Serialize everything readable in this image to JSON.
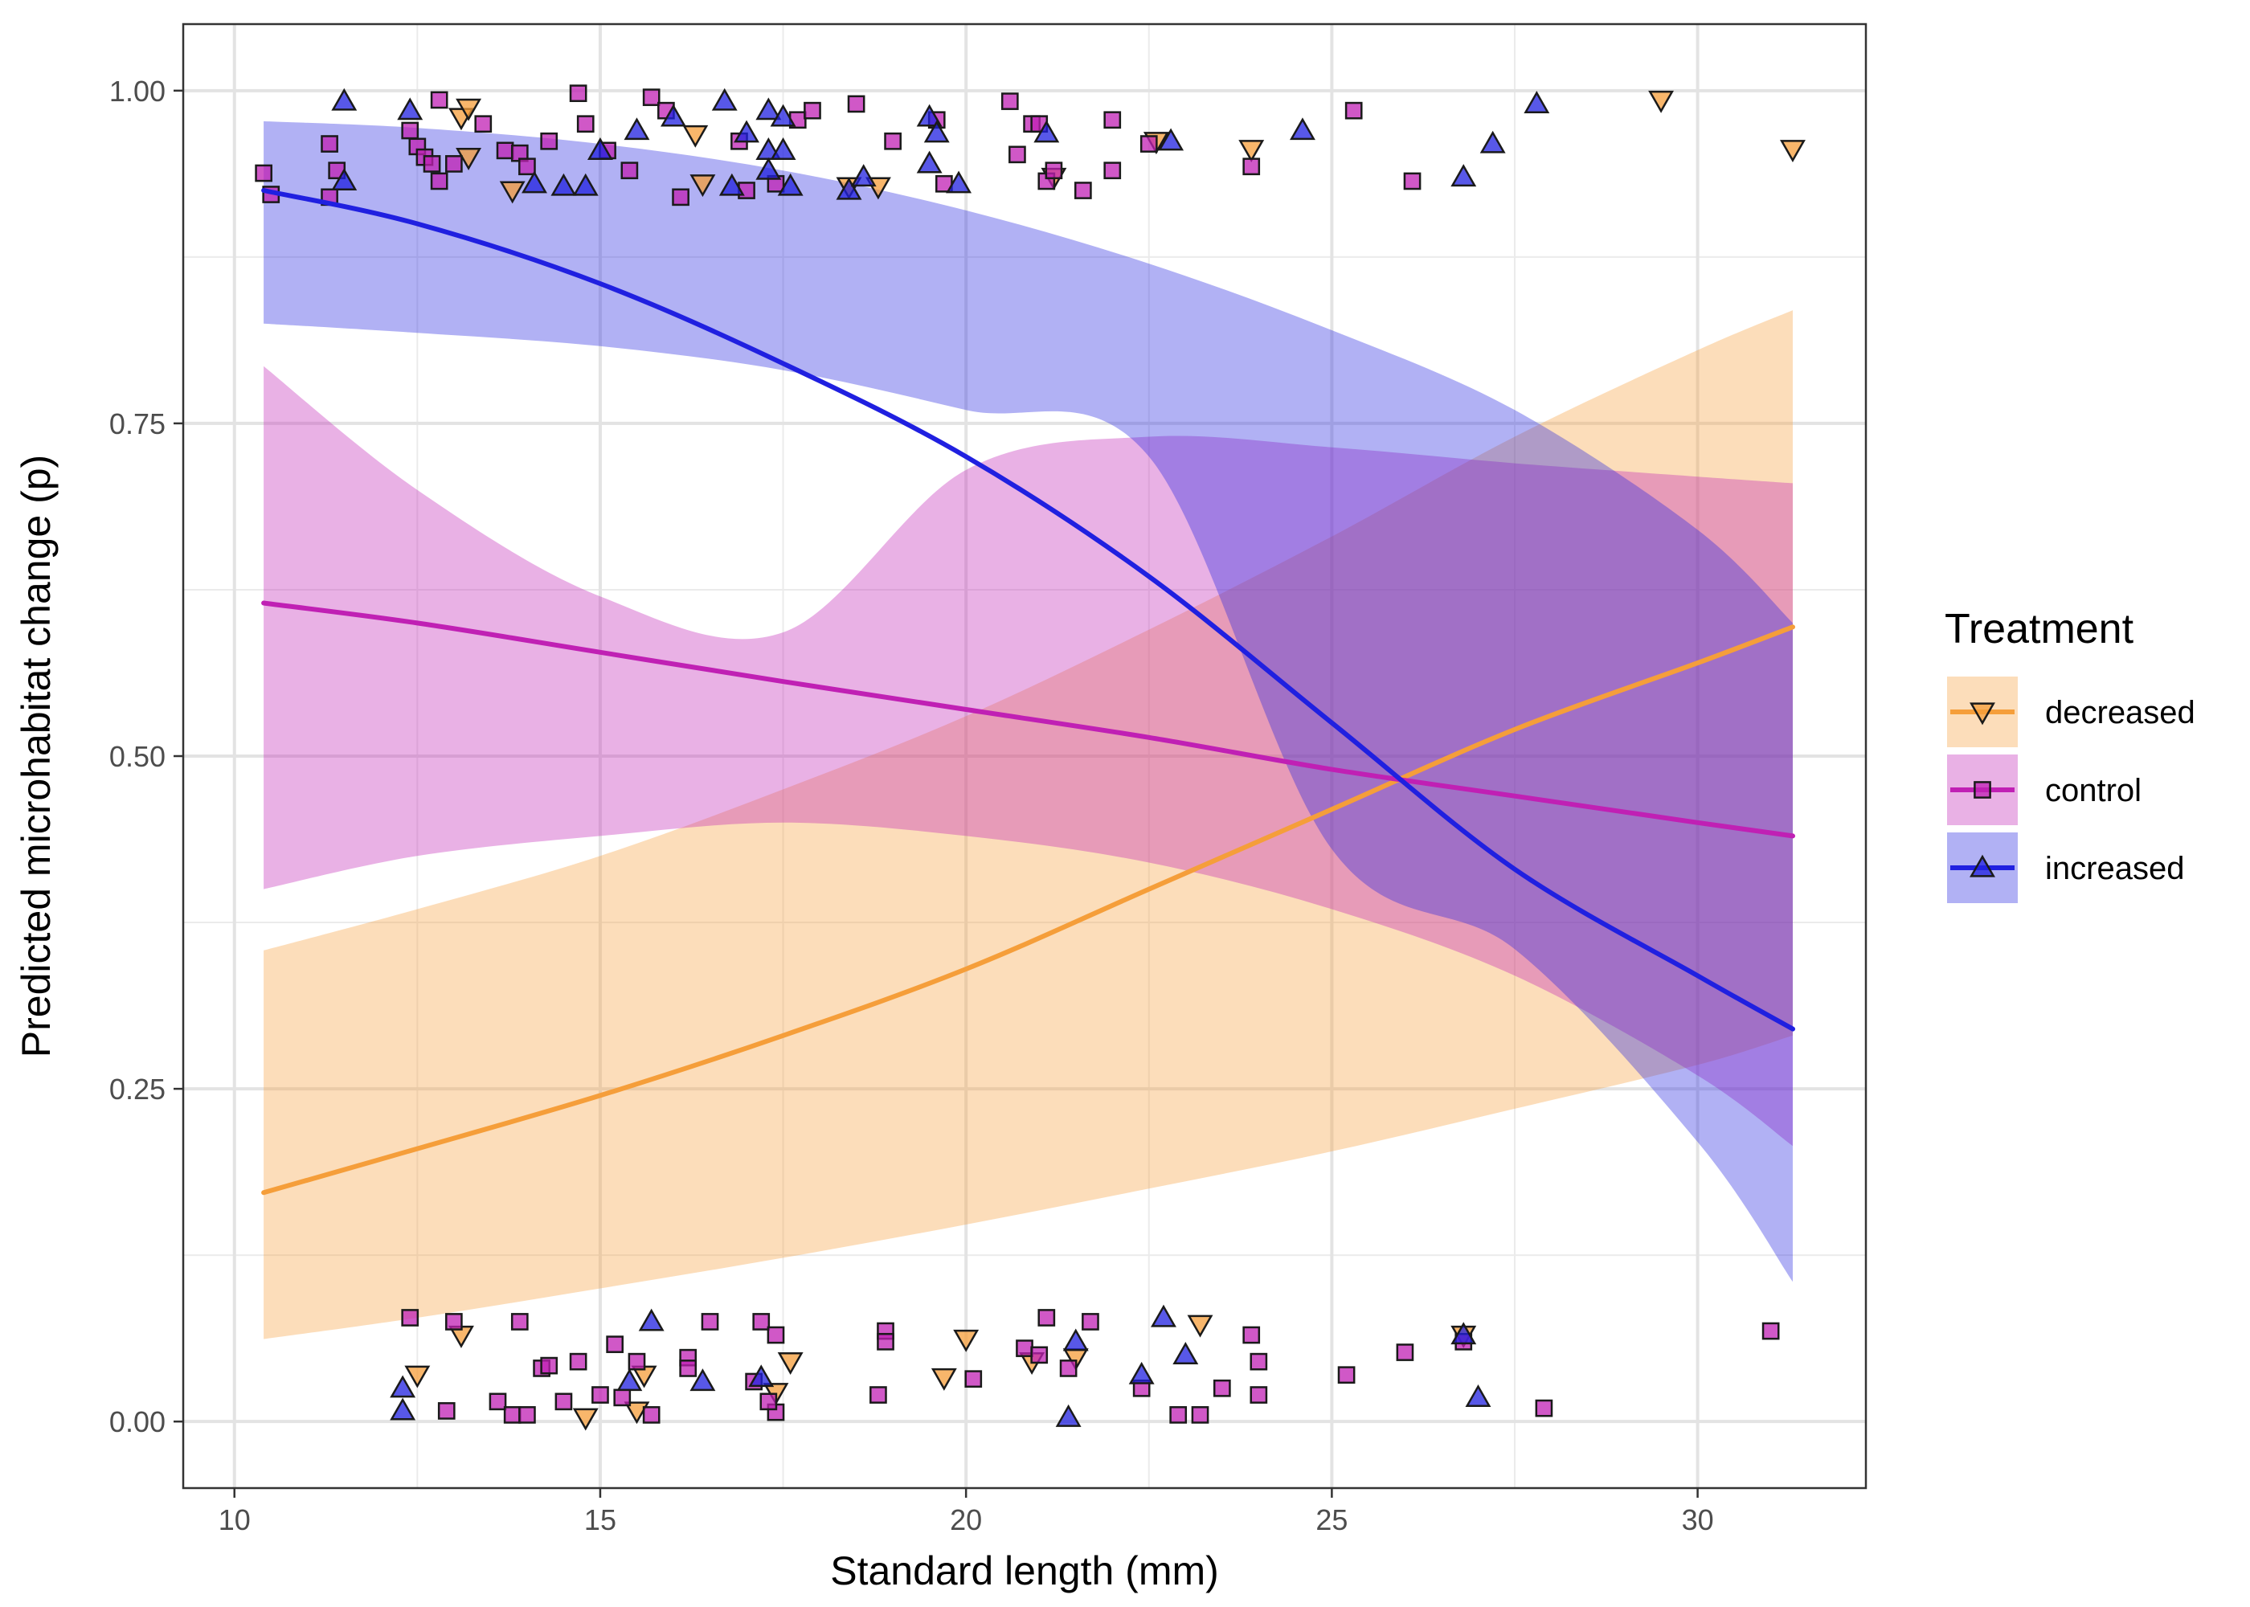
{
  "chart_data": {
    "type": "line",
    "xlabel": "Standard length (mm)",
    "ylabel": "Predicted microhabitat change (p)",
    "xlim": [
      9.3,
      32.3
    ],
    "ylim": [
      -0.05,
      1.05
    ],
    "x_ticks": [
      10,
      15,
      20,
      25,
      30
    ],
    "x_tick_labels": [
      "10",
      "15",
      "20",
      "25",
      "30"
    ],
    "y_ticks": [
      0,
      0.25,
      0.5,
      0.75,
      1
    ],
    "y_tick_labels": [
      "0.00",
      "0.25",
      "0.50",
      "0.75",
      "1.00"
    ],
    "grid": true,
    "legend": {
      "title": "Treatment",
      "position": "right",
      "entries": [
        "decreased",
        "control",
        "increased"
      ]
    },
    "series": [
      {
        "name": "decreased",
        "color": "#f59e3a",
        "marker": "triangle-down",
        "fit": {
          "x": [
            10.4,
            12.5,
            15,
            17.5,
            20,
            22.5,
            25,
            27.5,
            30,
            31.3
          ],
          "y": [
            0.172,
            0.205,
            0.245,
            0.29,
            0.34,
            0.4,
            0.46,
            0.52,
            0.57,
            0.597
          ],
          "lower": [
            0.062,
            0.078,
            0.1,
            0.123,
            0.148,
            0.175,
            0.203,
            0.235,
            0.268,
            0.29
          ],
          "upper": [
            0.354,
            0.385,
            0.425,
            0.475,
            0.53,
            0.595,
            0.665,
            0.74,
            0.805,
            0.835
          ]
        },
        "points": [
          [
            12.5,
            0.035
          ],
          [
            13.1,
            0.065
          ],
          [
            14.8,
            0.003
          ],
          [
            15.5,
            0.008
          ],
          [
            15.6,
            0.035
          ],
          [
            17.4,
            0.022
          ],
          [
            17.6,
            0.045
          ],
          [
            19.7,
            0.033
          ],
          [
            20,
            0.062
          ],
          [
            20.9,
            0.045
          ],
          [
            21.5,
            0.048
          ],
          [
            23.2,
            0.073
          ],
          [
            26.8,
            0.065
          ],
          [
            13.1,
            0.98
          ],
          [
            13.2,
            0.987
          ],
          [
            13.2,
            0.95
          ],
          [
            13.8,
            0.925
          ],
          [
            16.3,
            0.967
          ],
          [
            16.4,
            0.93
          ],
          [
            18.4,
            0.928
          ],
          [
            18.8,
            0.928
          ],
          [
            21.2,
            0.935
          ],
          [
            22.6,
            0.962
          ],
          [
            23.9,
            0.956
          ],
          [
            29.5,
            0.993
          ],
          [
            31.3,
            0.956
          ]
        ]
      },
      {
        "name": "control",
        "color": "#c020b4",
        "marker": "square",
        "fit": {
          "x": [
            10.4,
            12.5,
            15,
            17.5,
            20,
            22.5,
            25,
            27.5,
            30,
            31.3
          ],
          "y": [
            0.615,
            0.6,
            0.578,
            0.556,
            0.535,
            0.514,
            0.49,
            0.47,
            0.45,
            0.44
          ],
          "lower": [
            0.4,
            0.425,
            0.44,
            0.45,
            0.44,
            0.42,
            0.385,
            0.335,
            0.26,
            0.207
          ],
          "upper": [
            0.793,
            0.7,
            0.62,
            0.593,
            0.715,
            0.74,
            0.732,
            0.72,
            0.71,
            0.705
          ]
        },
        "points": [
          [
            12.4,
            0.078
          ],
          [
            13,
            0.075
          ],
          [
            13.9,
            0.075
          ],
          [
            14.7,
            0.045
          ],
          [
            15.2,
            0.058
          ],
          [
            15.5,
            0.045
          ],
          [
            16.5,
            0.075
          ],
          [
            17.2,
            0.075
          ],
          [
            17.4,
            0.065
          ],
          [
            18.9,
            0.068
          ],
          [
            18.9,
            0.06
          ],
          [
            20.8,
            0.055
          ],
          [
            21.1,
            0.078
          ],
          [
            21.7,
            0.075
          ],
          [
            23.9,
            0.065
          ],
          [
            26,
            0.052
          ],
          [
            31,
            0.068
          ],
          [
            12.9,
            0.008
          ],
          [
            13.6,
            0.015
          ],
          [
            13.8,
            0.005
          ],
          [
            14,
            0.005
          ],
          [
            14.2,
            0.04
          ],
          [
            14.3,
            0.042
          ],
          [
            14.5,
            0.015
          ],
          [
            15,
            0.02
          ],
          [
            15.3,
            0.018
          ],
          [
            15.7,
            0.005
          ],
          [
            16.2,
            0.048
          ],
          [
            16.2,
            0.04
          ],
          [
            17.1,
            0.03
          ],
          [
            17.4,
            0.007
          ],
          [
            17.3,
            0.015
          ],
          [
            18.8,
            0.02
          ],
          [
            20.1,
            0.032
          ],
          [
            21,
            0.05
          ],
          [
            21.4,
            0.04
          ],
          [
            22.4,
            0.025
          ],
          [
            22.9,
            0.005
          ],
          [
            23.2,
            0.005
          ],
          [
            23.5,
            0.025
          ],
          [
            24,
            0.045
          ],
          [
            24,
            0.02
          ],
          [
            25.2,
            0.035
          ],
          [
            26.8,
            0.06
          ],
          [
            27.9,
            0.01
          ],
          [
            10.4,
            0.938
          ],
          [
            10.5,
            0.922
          ],
          [
            11.3,
            0.92
          ],
          [
            11.3,
            0.96
          ],
          [
            11.4,
            0.94
          ],
          [
            12.4,
            0.97
          ],
          [
            12.5,
            0.958
          ],
          [
            12.6,
            0.95
          ],
          [
            12.7,
            0.945
          ],
          [
            12.8,
            0.932
          ],
          [
            12.8,
            0.993
          ],
          [
            13,
            0.945
          ],
          [
            13.4,
            0.975
          ],
          [
            13.7,
            0.955
          ],
          [
            13.9,
            0.953
          ],
          [
            14,
            0.943
          ],
          [
            14.3,
            0.962
          ],
          [
            14.7,
            0.998
          ],
          [
            14.8,
            0.975
          ],
          [
            15.1,
            0.955
          ],
          [
            15.4,
            0.94
          ],
          [
            15.7,
            0.995
          ],
          [
            15.9,
            0.985
          ],
          [
            16.1,
            0.92
          ],
          [
            16.9,
            0.962
          ],
          [
            17,
            0.925
          ],
          [
            17.4,
            0.93
          ],
          [
            17.7,
            0.978
          ],
          [
            17.9,
            0.985
          ],
          [
            18.5,
            0.99
          ],
          [
            19,
            0.962
          ],
          [
            19.6,
            0.978
          ],
          [
            19.7,
            0.93
          ],
          [
            20.6,
            0.992
          ],
          [
            20.7,
            0.952
          ],
          [
            20.9,
            0.975
          ],
          [
            21,
            0.975
          ],
          [
            21.1,
            0.932
          ],
          [
            21.2,
            0.94
          ],
          [
            21.6,
            0.925
          ],
          [
            22,
            0.978
          ],
          [
            22,
            0.94
          ],
          [
            22.5,
            0.96
          ],
          [
            23.9,
            0.943
          ],
          [
            25.3,
            0.985
          ],
          [
            26.1,
            0.932
          ]
        ]
      },
      {
        "name": "increased",
        "color": "#2020e0",
        "marker": "triangle-up",
        "fit": {
          "x": [
            10.4,
            12.5,
            15,
            17.5,
            20,
            22.5,
            25,
            27.5,
            30,
            31.3
          ],
          "y": [
            0.925,
            0.9,
            0.855,
            0.795,
            0.725,
            0.635,
            0.525,
            0.415,
            0.335,
            0.295
          ],
          "lower": [
            0.825,
            0.818,
            0.808,
            0.79,
            0.76,
            0.725,
            0.43,
            0.355,
            0.21,
            0.105
          ],
          "upper": [
            0.977,
            0.972,
            0.96,
            0.94,
            0.91,
            0.87,
            0.82,
            0.76,
            0.67,
            0.6
          ]
        },
        "points": [
          [
            12.3,
            0.025
          ],
          [
            12.3,
            0.008
          ],
          [
            15.4,
            0.03
          ],
          [
            15.7,
            0.075
          ],
          [
            16.4,
            0.03
          ],
          [
            17.2,
            0.033
          ],
          [
            21.4,
            0.003
          ],
          [
            21.5,
            0.06
          ],
          [
            22.4,
            0.035
          ],
          [
            22.7,
            0.078
          ],
          [
            23,
            0.05
          ],
          [
            26.8,
            0.065
          ],
          [
            27,
            0.018
          ],
          [
            11.5,
            0.992
          ],
          [
            11.5,
            0.932
          ],
          [
            12.4,
            0.985
          ],
          [
            14.1,
            0.93
          ],
          [
            14.5,
            0.928
          ],
          [
            14.8,
            0.928
          ],
          [
            15,
            0.955
          ],
          [
            15.5,
            0.97
          ],
          [
            16,
            0.98
          ],
          [
            16.7,
            0.992
          ],
          [
            16.8,
            0.928
          ],
          [
            17,
            0.968
          ],
          [
            17.3,
            0.985
          ],
          [
            17.3,
            0.955
          ],
          [
            17.3,
            0.94
          ],
          [
            17.5,
            0.98
          ],
          [
            17.5,
            0.955
          ],
          [
            17.6,
            0.928
          ],
          [
            18.4,
            0.925
          ],
          [
            18.6,
            0.935
          ],
          [
            19.5,
            0.98
          ],
          [
            19.5,
            0.945
          ],
          [
            19.6,
            0.968
          ],
          [
            19.9,
            0.93
          ],
          [
            21.1,
            0.968
          ],
          [
            22.8,
            0.962
          ],
          [
            24.6,
            0.97
          ],
          [
            26.8,
            0.935
          ],
          [
            27.2,
            0.96
          ],
          [
            27.8,
            0.99
          ]
        ]
      }
    ]
  }
}
